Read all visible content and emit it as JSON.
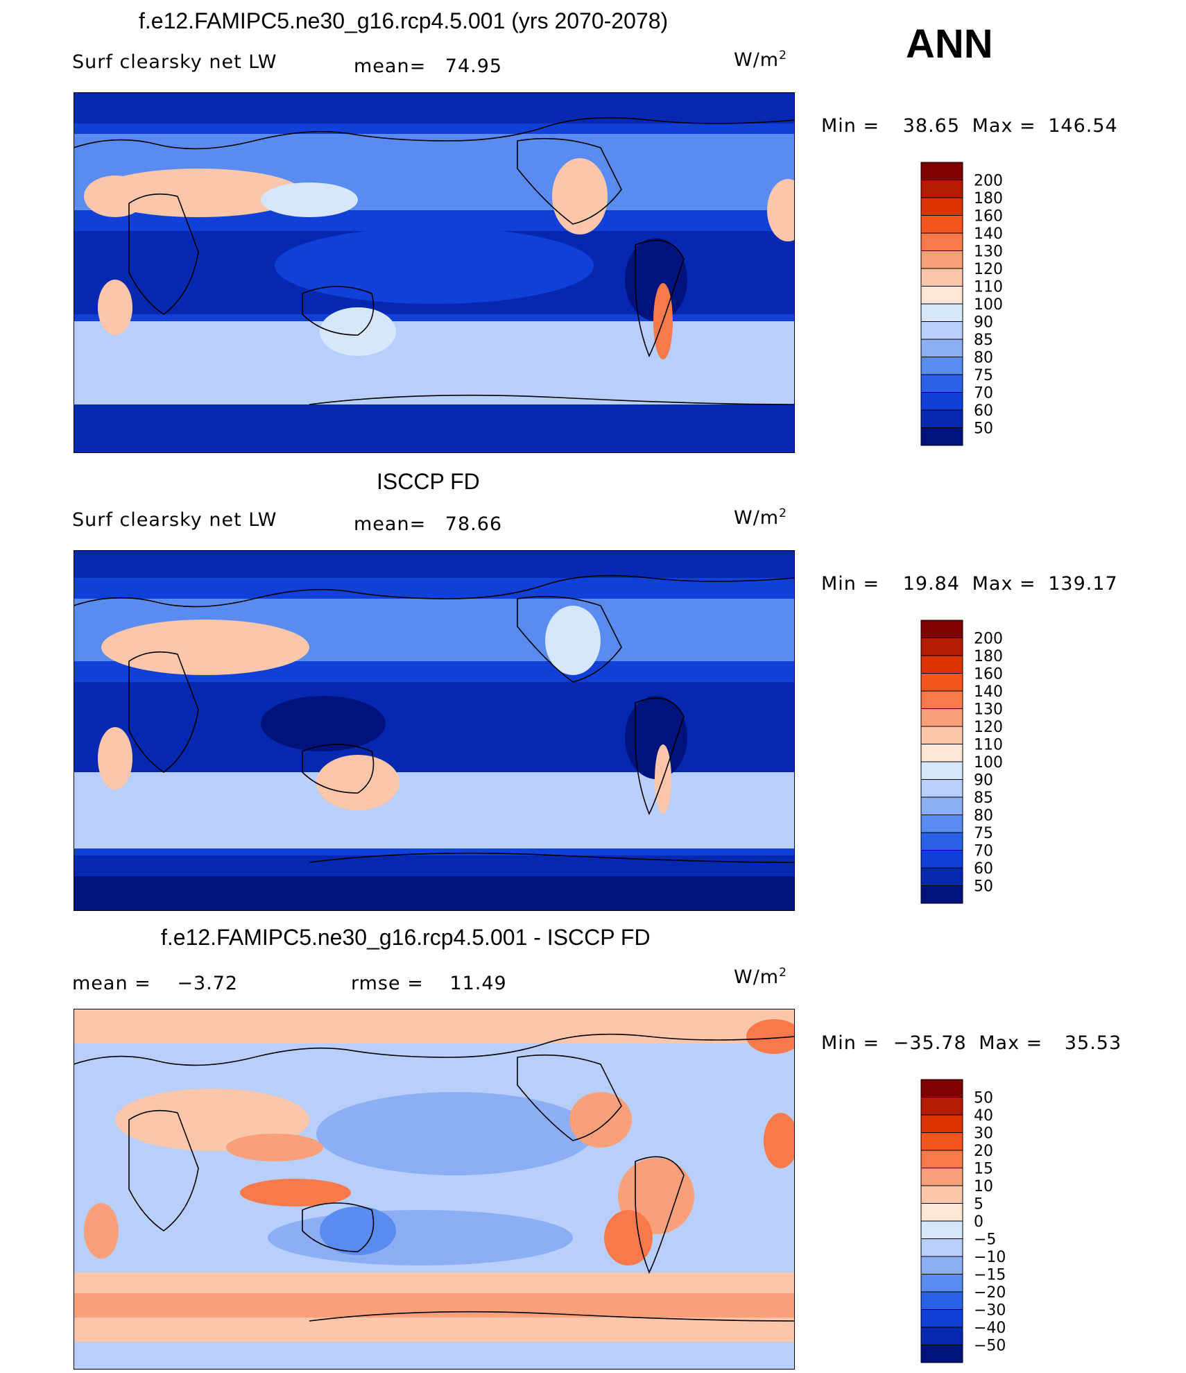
{
  "season": "ANN",
  "panels": [
    {
      "title": "f.e12.FAMIPC5.ne30_g16.rcp4.5.001 (yrs 2070-2078)",
      "variable": "Surf clearsky net LW",
      "stat1_label": "mean=",
      "stat1_value": "74.95",
      "stat2_label": "",
      "stat2_value": "",
      "units": "W/m",
      "units_sup": "2",
      "min_label": "Min =",
      "min_value": "38.65",
      "max_label": "Max =",
      "max_value": "146.54",
      "colorbar": {
        "levels": [
          "200",
          "180",
          "160",
          "140",
          "130",
          "120",
          "110",
          "100",
          "90",
          "85",
          "80",
          "75",
          "70",
          "60",
          "50"
        ],
        "colors": [
          "#7f0000",
          "#b31a00",
          "#dd3300",
          "#f4551f",
          "#f8794a",
          "#f9a07a",
          "#fbc6a9",
          "#fde6d6",
          "#d6e6fb",
          "#b7cffa",
          "#8caef5",
          "#5a8bf0",
          "#2a62ea",
          "#1140d8",
          "#0528b0",
          "#00137c"
        ]
      }
    },
    {
      "title": "ISCCP FD",
      "variable": "Surf clearsky net LW",
      "stat1_label": "mean=",
      "stat1_value": "78.66",
      "stat2_label": "",
      "stat2_value": "",
      "units": "W/m",
      "units_sup": "2",
      "min_label": "Min =",
      "min_value": "19.84",
      "max_label": "Max =",
      "max_value": "139.17",
      "colorbar": {
        "levels": [
          "200",
          "180",
          "160",
          "140",
          "130",
          "120",
          "110",
          "100",
          "90",
          "85",
          "80",
          "75",
          "70",
          "60",
          "50"
        ],
        "colors": [
          "#7f0000",
          "#b31a00",
          "#dd3300",
          "#f4551f",
          "#f8794a",
          "#f9a07a",
          "#fbc6a9",
          "#fde6d6",
          "#d6e6fb",
          "#b7cffa",
          "#8caef5",
          "#5a8bf0",
          "#2a62ea",
          "#1140d8",
          "#0528b0",
          "#00137c"
        ]
      }
    },
    {
      "title": "f.e12.FAMIPC5.ne30_g16.rcp4.5.001 - ISCCP FD",
      "variable": "",
      "stat1_label": "mean =",
      "stat1_value": "−3.72",
      "stat2_label": "rmse =",
      "stat2_value": "11.49",
      "units": "W/m",
      "units_sup": "2",
      "min_label": "Min =",
      "min_value": "−35.78",
      "max_label": "Max =",
      "max_value": "35.53",
      "colorbar": {
        "levels": [
          "50",
          "40",
          "30",
          "20",
          "15",
          "10",
          "5",
          "0",
          "−5",
          "−10",
          "−15",
          "−20",
          "−30",
          "−40",
          "−50"
        ],
        "colors": [
          "#7f0000",
          "#b31a00",
          "#dd3300",
          "#f4551f",
          "#f8794a",
          "#f9a07a",
          "#fbc6a9",
          "#fde6d6",
          "#d6e6fb",
          "#b7cffa",
          "#8caef5",
          "#5a8bf0",
          "#2a62ea",
          "#1140d8",
          "#0528b0",
          "#00137c"
        ]
      }
    }
  ]
}
